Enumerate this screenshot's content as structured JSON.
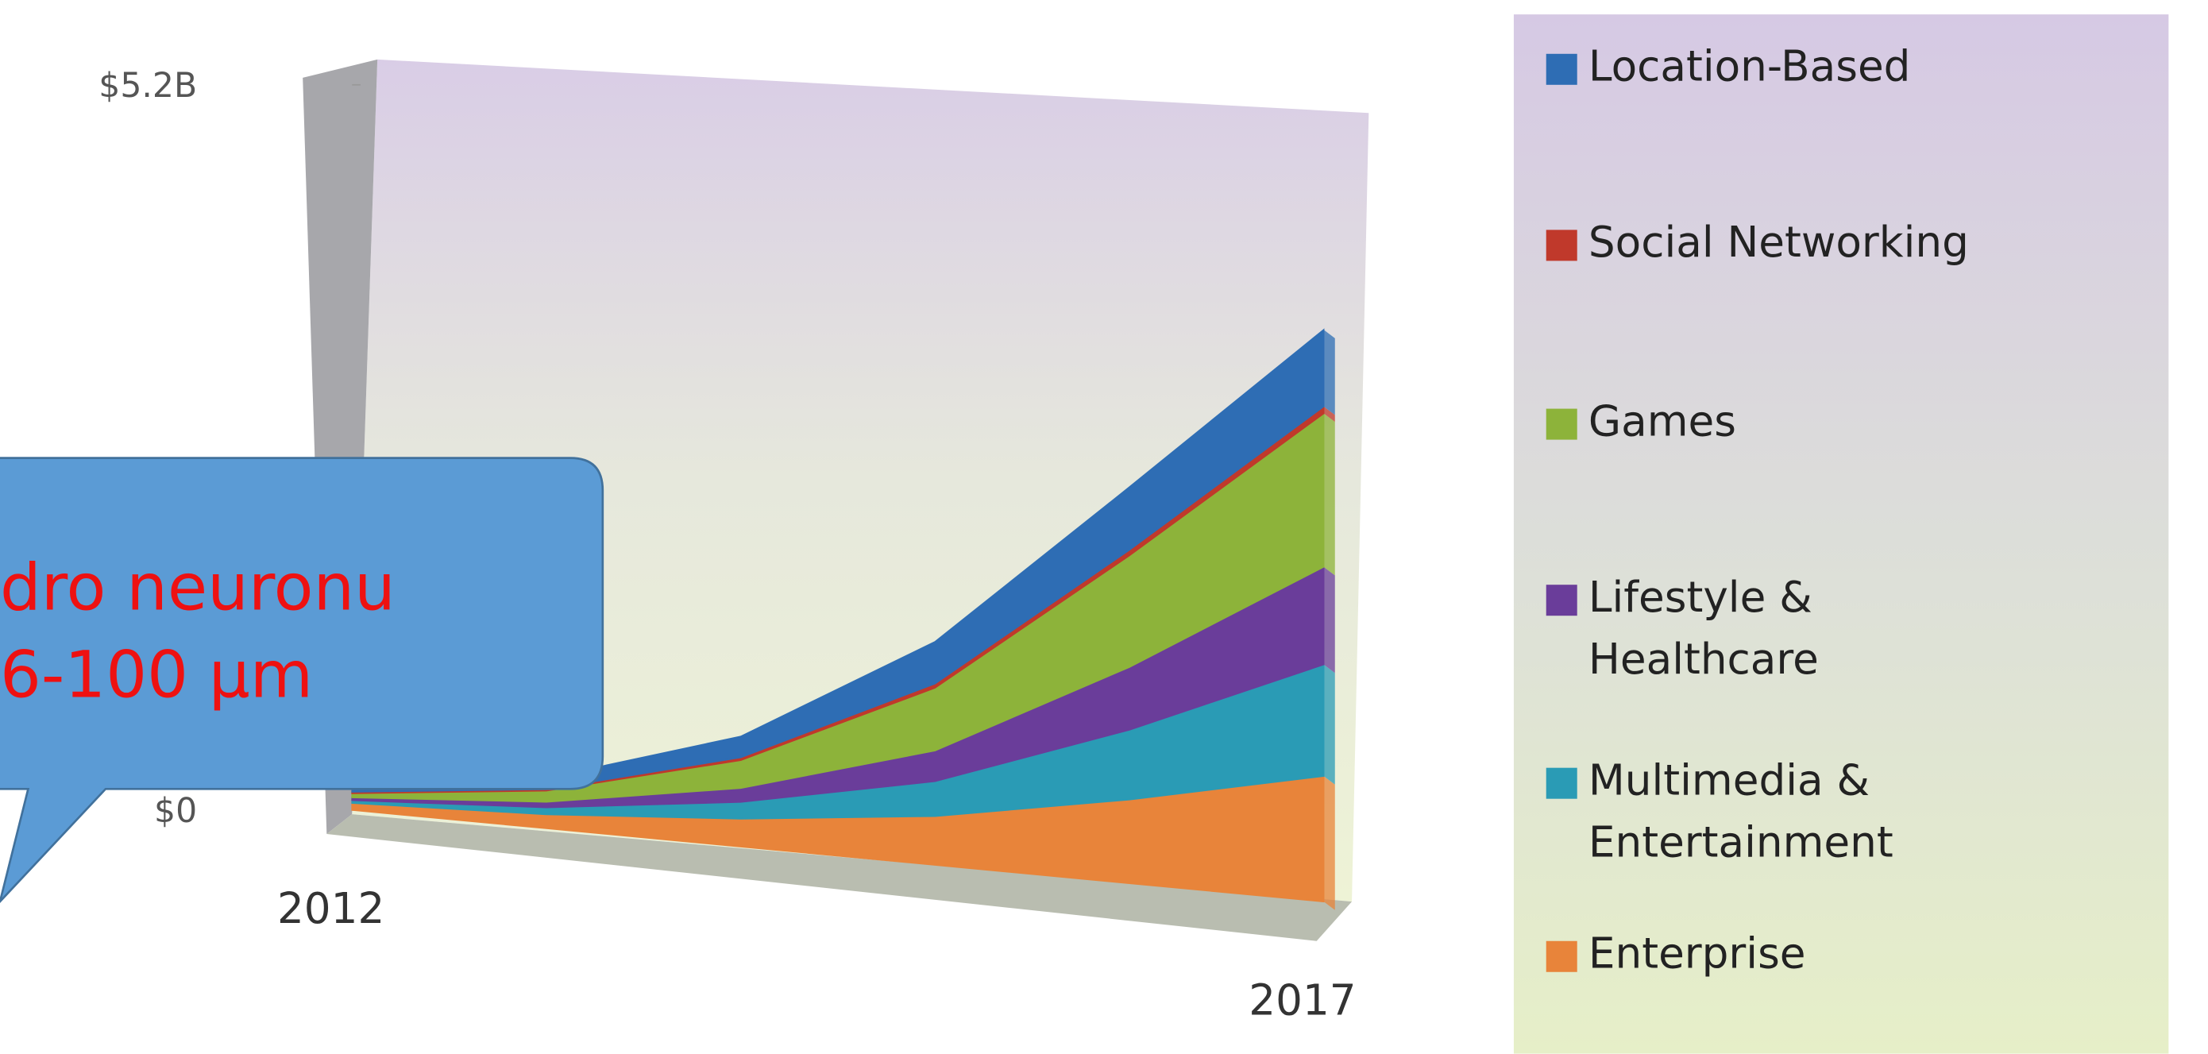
{
  "chart_data": {
    "type": "area",
    "categories": [
      "2012",
      null,
      null,
      null,
      null,
      "2017"
    ],
    "ylim": [
      0,
      5.2
    ],
    "yticks": [
      {
        "value": 0,
        "label": "$0"
      },
      {
        "value": 5.2,
        "label": "$5.2B"
      }
    ],
    "series": [
      {
        "name": "Enterprise",
        "color": "#e8843a",
        "values": [
          0.05,
          0.1,
          0.2,
          0.35,
          0.6,
          0.9
        ]
      },
      {
        "name": "Multimedia & Entertainment",
        "color": "#2a9bb5",
        "values": [
          0.02,
          0.05,
          0.12,
          0.25,
          0.5,
          0.8
        ]
      },
      {
        "name": "Lifestyle & Healthcare",
        "color": "#6a3d9a",
        "values": [
          0.02,
          0.04,
          0.1,
          0.22,
          0.45,
          0.7
        ]
      },
      {
        "name": "Games",
        "color": "#8db33a",
        "values": [
          0.03,
          0.08,
          0.2,
          0.45,
          0.8,
          1.1
        ]
      },
      {
        "name": "Social Networking",
        "color": "#c0392b",
        "values": [
          0.01,
          0.01,
          0.02,
          0.03,
          0.04,
          0.05
        ]
      },
      {
        "name": "Location-Based",
        "color": "#2e6db4",
        "values": [
          0.05,
          0.08,
          0.15,
          0.3,
          0.45,
          0.55
        ]
      }
    ],
    "annotations": [
      "dro neuronu",
      "6-100 μm"
    ]
  }
}
